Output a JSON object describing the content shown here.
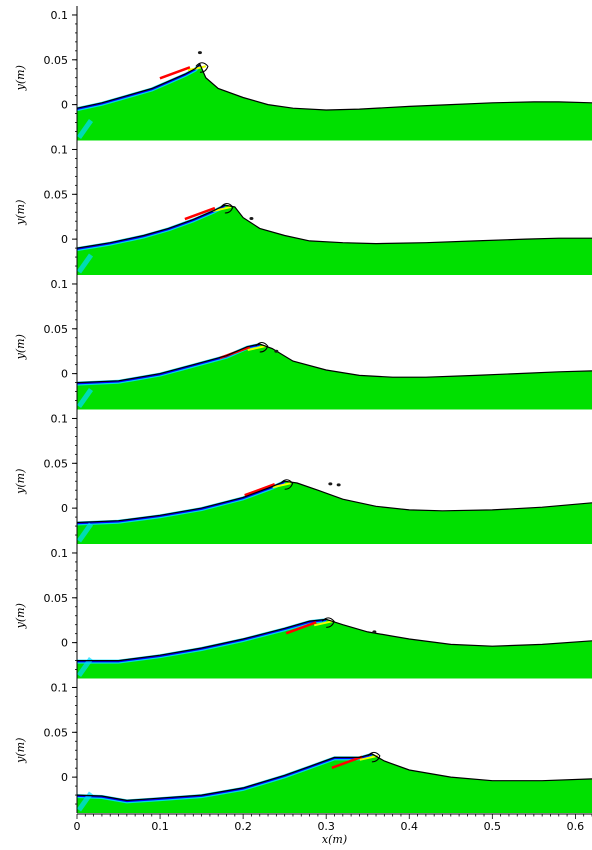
{
  "chart_data": {
    "type": "area",
    "description_free": true,
    "xlabel": "x(m)",
    "ylabel": "y(m)",
    "xlim": [
      0,
      0.62
    ],
    "ylim": [
      -0.04,
      0.11
    ],
    "x_ticks": [
      "0",
      "0.1",
      "0.2",
      "0.3",
      "0.4",
      "0.5",
      "0.6"
    ],
    "y_ticks": [
      "0.1",
      "0.05",
      "0"
    ],
    "colors": {
      "water": "#00e000",
      "surface": "#000000",
      "cyan": "#00d8ff",
      "blue": "#0000ff",
      "red": "#ff0000",
      "yellow": "#f0ff00"
    },
    "panels": [
      {
        "ylabel": "y(m)",
        "surface": [
          [
            0,
            -0.004
          ],
          [
            0.03,
            0.002
          ],
          [
            0.06,
            0.01
          ],
          [
            0.09,
            0.018
          ],
          [
            0.11,
            0.026
          ],
          [
            0.13,
            0.034
          ],
          [
            0.142,
            0.04
          ],
          [
            0.148,
            0.045
          ],
          [
            0.155,
            0.03
          ],
          [
            0.17,
            0.018
          ],
          [
            0.2,
            0.008
          ],
          [
            0.23,
            0.0
          ],
          [
            0.26,
            -0.004
          ],
          [
            0.3,
            -0.006
          ],
          [
            0.34,
            -0.005
          ],
          [
            0.4,
            -0.002
          ],
          [
            0.45,
            0.0
          ],
          [
            0.5,
            0.002
          ],
          [
            0.55,
            0.003
          ],
          [
            0.58,
            0.003
          ],
          [
            0.62,
            0.002
          ]
        ],
        "droplets": [
          [
            0.148,
            0.058
          ]
        ]
      },
      {
        "ylabel": "y(m)",
        "surface": [
          [
            0,
            -0.01
          ],
          [
            0.04,
            -0.004
          ],
          [
            0.08,
            0.004
          ],
          [
            0.11,
            0.012
          ],
          [
            0.14,
            0.022
          ],
          [
            0.165,
            0.032
          ],
          [
            0.178,
            0.038
          ],
          [
            0.19,
            0.036
          ],
          [
            0.2,
            0.024
          ],
          [
            0.22,
            0.012
          ],
          [
            0.25,
            0.004
          ],
          [
            0.28,
            -0.002
          ],
          [
            0.32,
            -0.004
          ],
          [
            0.36,
            -0.005
          ],
          [
            0.42,
            -0.004
          ],
          [
            0.48,
            -0.002
          ],
          [
            0.54,
            0.0
          ],
          [
            0.58,
            0.001
          ],
          [
            0.62,
            0.001
          ]
        ],
        "droplets": [
          [
            0.21,
            0.023
          ]
        ]
      },
      {
        "ylabel": "y(m)",
        "surface": [
          [
            0,
            -0.01
          ],
          [
            0.05,
            -0.008
          ],
          [
            0.1,
            0.0
          ],
          [
            0.14,
            0.01
          ],
          [
            0.18,
            0.02
          ],
          [
            0.205,
            0.03
          ],
          [
            0.22,
            0.033
          ],
          [
            0.235,
            0.028
          ],
          [
            0.26,
            0.014
          ],
          [
            0.3,
            0.004
          ],
          [
            0.34,
            -0.002
          ],
          [
            0.38,
            -0.004
          ],
          [
            0.42,
            -0.004
          ],
          [
            0.48,
            -0.002
          ],
          [
            0.53,
            0.0
          ],
          [
            0.58,
            0.002
          ],
          [
            0.62,
            0.003
          ]
        ],
        "droplets": [
          [
            0.24,
            0.025
          ]
        ]
      },
      {
        "ylabel": "y(m)",
        "surface": [
          [
            0,
            -0.016
          ],
          [
            0.05,
            -0.014
          ],
          [
            0.1,
            -0.008
          ],
          [
            0.15,
            0.0
          ],
          [
            0.2,
            0.012
          ],
          [
            0.235,
            0.024
          ],
          [
            0.25,
            0.03
          ],
          [
            0.265,
            0.028
          ],
          [
            0.29,
            0.02
          ],
          [
            0.32,
            0.01
          ],
          [
            0.36,
            0.002
          ],
          [
            0.4,
            -0.002
          ],
          [
            0.44,
            -0.003
          ],
          [
            0.5,
            -0.002
          ],
          [
            0.56,
            0.001
          ],
          [
            0.62,
            0.006
          ]
        ],
        "droplets": [
          [
            0.305,
            0.027
          ],
          [
            0.315,
            0.026
          ]
        ]
      },
      {
        "ylabel": "y(m)",
        "surface": [
          [
            0,
            -0.02
          ],
          [
            0.05,
            -0.02
          ],
          [
            0.1,
            -0.014
          ],
          [
            0.15,
            -0.006
          ],
          [
            0.2,
            0.004
          ],
          [
            0.25,
            0.016
          ],
          [
            0.28,
            0.024
          ],
          [
            0.3,
            0.026
          ],
          [
            0.32,
            0.02
          ],
          [
            0.35,
            0.012
          ],
          [
            0.4,
            0.004
          ],
          [
            0.45,
            -0.002
          ],
          [
            0.5,
            -0.004
          ],
          [
            0.56,
            -0.002
          ],
          [
            0.62,
            0.002
          ]
        ],
        "droplets": [
          [
            0.358,
            0.012
          ]
        ]
      },
      {
        "ylabel": "y(m)",
        "surface": [
          [
            0,
            -0.02
          ],
          [
            0.03,
            -0.021
          ],
          [
            0.06,
            -0.026
          ],
          [
            0.09,
            -0.024
          ],
          [
            0.15,
            -0.02
          ],
          [
            0.2,
            -0.012
          ],
          [
            0.25,
            0.002
          ],
          [
            0.28,
            0.012
          ],
          [
            0.31,
            0.022
          ],
          [
            0.34,
            0.022
          ],
          [
            0.355,
            0.026
          ],
          [
            0.37,
            0.018
          ],
          [
            0.4,
            0.008
          ],
          [
            0.45,
            0.0
          ],
          [
            0.5,
            -0.004
          ],
          [
            0.56,
            -0.004
          ],
          [
            0.62,
            -0.002
          ]
        ],
        "droplets": []
      }
    ]
  }
}
